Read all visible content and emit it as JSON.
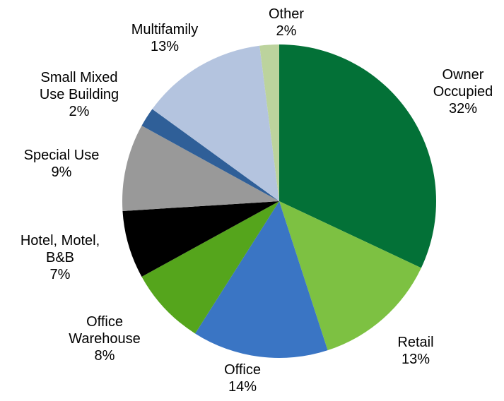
{
  "chart_data": {
    "type": "pie",
    "categories": [
      "Owner Occupied",
      "Retail",
      "Office",
      "Office Warehouse",
      "Hotel, Motel, B&B",
      "Special Use",
      "Small Mixed Use Building",
      "Multifamily",
      "Other"
    ],
    "values": [
      32,
      13,
      14,
      8,
      7,
      9,
      2,
      13,
      2
    ],
    "value_labels": [
      "32%",
      "13%",
      "14%",
      "8%",
      "7%",
      "9%",
      "2%",
      "13%",
      "2%"
    ],
    "colors": [
      "#037137",
      "#7dc142",
      "#3a75c4",
      "#55a51c",
      "#000000",
      "#999999",
      "#2f5f98",
      "#b4c4df",
      "#bcd39d"
    ]
  }
}
